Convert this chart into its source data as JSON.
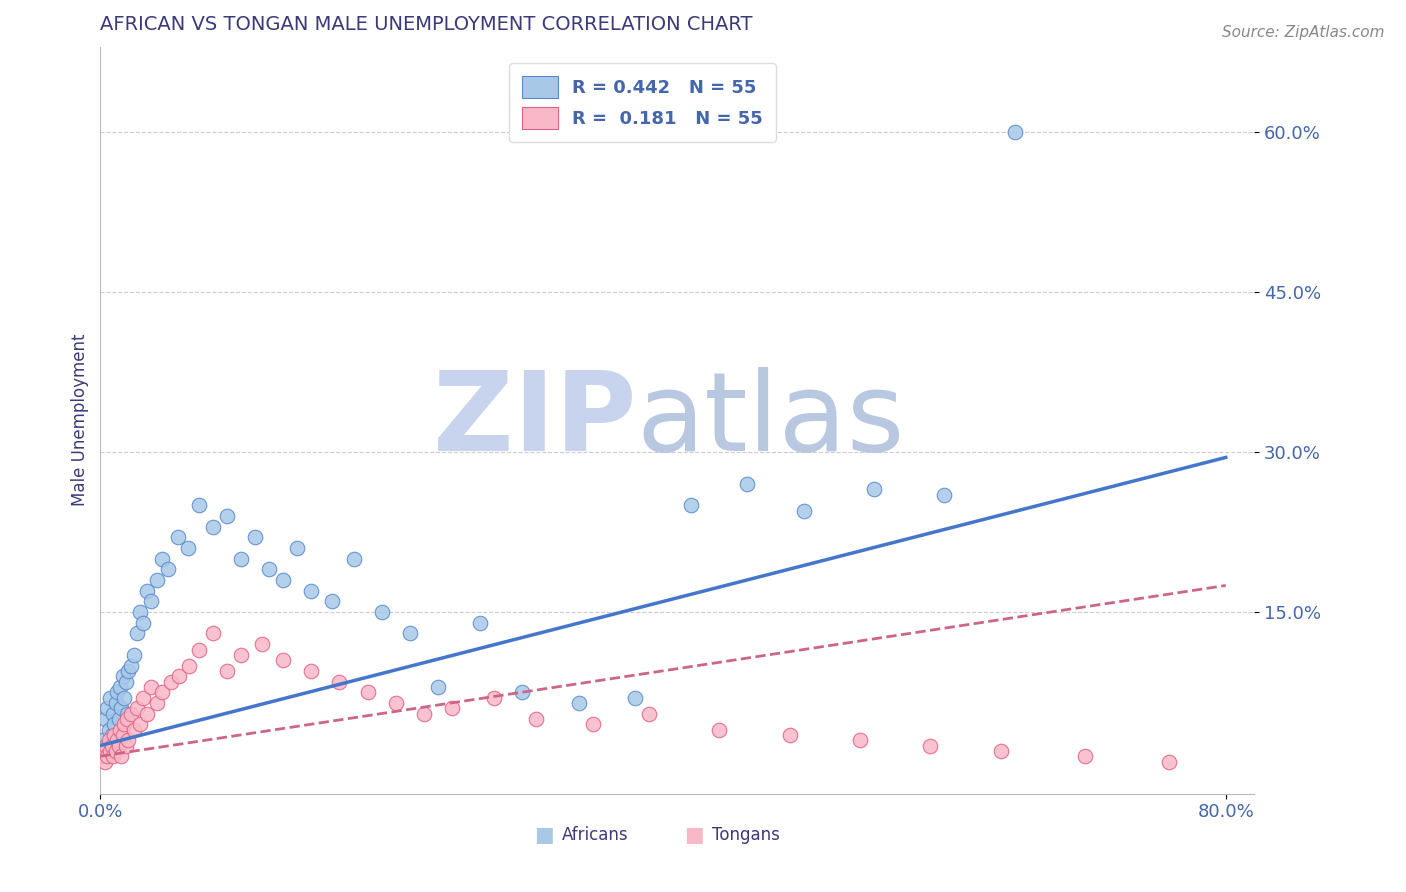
{
  "title": "AFRICAN VS TONGAN MALE UNEMPLOYMENT CORRELATION CHART",
  "source": "Source: ZipAtlas.com",
  "ylabel": "Male Unemployment",
  "xlim": [
    0,
    0.82
  ],
  "ylim": [
    -0.02,
    0.68
  ],
  "xticks": [
    0.0,
    0.8
  ],
  "xtick_labels": [
    "0.0%",
    "80.0%"
  ],
  "ytick_positions": [
    0.15,
    0.3,
    0.45,
    0.6
  ],
  "ytick_labels": [
    "15.0%",
    "30.0%",
    "45.0%",
    "60.0%"
  ],
  "legend_r1": "R = 0.442",
  "legend_n1": "N = 55",
  "legend_r2": "R =  0.181",
  "legend_n2": "N = 55",
  "blue_color": "#a8c8e8",
  "blue_edge": "#5588cc",
  "pink_color": "#f8b8c8",
  "pink_edge": "#e06080",
  "trend_blue": "#4477cc",
  "trend_pink": "#cc6688",
  "title_color": "#3a3a7a",
  "axis_label_color": "#3a3a7a",
  "tick_color": "#4466aa",
  "grid_color": "#cccccc",
  "watermark_zip_color": "#c8d4ee",
  "watermark_atlas_color": "#b8c8e0",
  "blue_trend_start_y": 0.025,
  "blue_trend_end_y": 0.295,
  "pink_trend_start_y": 0.015,
  "pink_trend_end_y": 0.175,
  "africans_x": [
    0.002,
    0.003,
    0.004,
    0.005,
    0.006,
    0.007,
    0.008,
    0.009,
    0.01,
    0.011,
    0.012,
    0.013,
    0.014,
    0.015,
    0.016,
    0.017,
    0.018,
    0.019,
    0.02,
    0.022,
    0.024,
    0.026,
    0.028,
    0.03,
    0.033,
    0.036,
    0.04,
    0.044,
    0.048,
    0.055,
    0.062,
    0.07,
    0.08,
    0.09,
    0.1,
    0.11,
    0.12,
    0.13,
    0.14,
    0.15,
    0.165,
    0.18,
    0.2,
    0.22,
    0.24,
    0.27,
    0.3,
    0.34,
    0.38,
    0.42,
    0.46,
    0.5,
    0.55,
    0.6,
    0.65
  ],
  "africans_y": [
    0.03,
    0.05,
    0.025,
    0.06,
    0.04,
    0.07,
    0.035,
    0.055,
    0.045,
    0.065,
    0.075,
    0.05,
    0.08,
    0.06,
    0.09,
    0.07,
    0.085,
    0.055,
    0.095,
    0.1,
    0.11,
    0.13,
    0.15,
    0.14,
    0.17,
    0.16,
    0.18,
    0.2,
    0.19,
    0.22,
    0.21,
    0.25,
    0.23,
    0.24,
    0.2,
    0.22,
    0.19,
    0.18,
    0.21,
    0.17,
    0.16,
    0.2,
    0.15,
    0.13,
    0.08,
    0.14,
    0.075,
    0.065,
    0.07,
    0.25,
    0.27,
    0.245,
    0.265,
    0.26,
    0.6
  ],
  "tongans_x": [
    0.001,
    0.002,
    0.003,
    0.004,
    0.005,
    0.006,
    0.007,
    0.008,
    0.009,
    0.01,
    0.011,
    0.012,
    0.013,
    0.014,
    0.015,
    0.016,
    0.017,
    0.018,
    0.019,
    0.02,
    0.022,
    0.024,
    0.026,
    0.028,
    0.03,
    0.033,
    0.036,
    0.04,
    0.044,
    0.05,
    0.056,
    0.063,
    0.07,
    0.08,
    0.09,
    0.1,
    0.115,
    0.13,
    0.15,
    0.17,
    0.19,
    0.21,
    0.23,
    0.25,
    0.28,
    0.31,
    0.35,
    0.39,
    0.44,
    0.49,
    0.54,
    0.59,
    0.64,
    0.7,
    0.76
  ],
  "tongans_y": [
    0.015,
    0.02,
    0.01,
    0.025,
    0.015,
    0.03,
    0.02,
    0.025,
    0.015,
    0.035,
    0.02,
    0.03,
    0.025,
    0.04,
    0.015,
    0.035,
    0.045,
    0.025,
    0.05,
    0.03,
    0.055,
    0.04,
    0.06,
    0.045,
    0.07,
    0.055,
    0.08,
    0.065,
    0.075,
    0.085,
    0.09,
    0.1,
    0.115,
    0.13,
    0.095,
    0.11,
    0.12,
    0.105,
    0.095,
    0.085,
    0.075,
    0.065,
    0.055,
    0.06,
    0.07,
    0.05,
    0.045,
    0.055,
    0.04,
    0.035,
    0.03,
    0.025,
    0.02,
    0.015,
    0.01
  ]
}
